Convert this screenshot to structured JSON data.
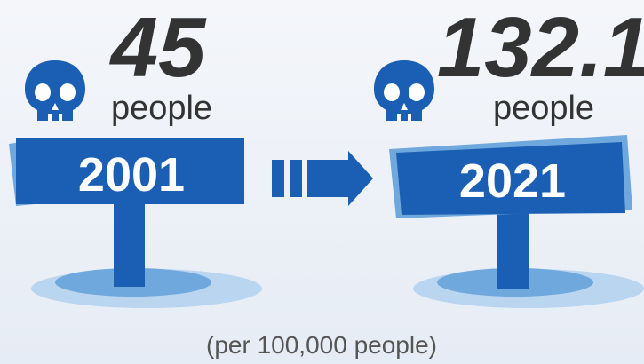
{
  "items": [
    {
      "value": "45",
      "unit": "people",
      "year": "2001"
    },
    {
      "value": "132.1",
      "unit": "people",
      "year": "2021"
    }
  ],
  "footnote": "(per 100,000 people)"
}
